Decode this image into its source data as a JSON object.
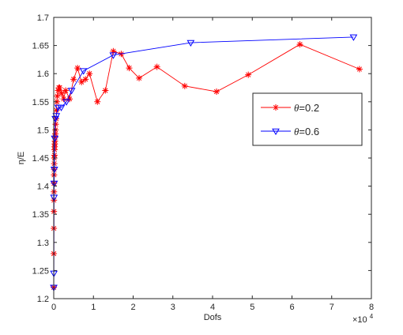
{
  "chart_data": {
    "type": "line",
    "xlabel": "Dofs",
    "ylabel": "η/E",
    "x_exponent_label": "×10",
    "x_exponent_power": "4",
    "xlim": [
      0,
      80000
    ],
    "ylim": [
      1.2,
      1.7
    ],
    "x_ticks": [
      0,
      10000,
      20000,
      30000,
      40000,
      50000,
      60000,
      70000,
      80000
    ],
    "x_tick_labels": [
      "0",
      "1",
      "2",
      "3",
      "4",
      "5",
      "6",
      "7",
      "8"
    ],
    "y_ticks": [
      1.2,
      1.25,
      1.3,
      1.35,
      1.4,
      1.45,
      1.5,
      1.55,
      1.6,
      1.65,
      1.7
    ],
    "y_tick_labels": [
      "1.2",
      "1.25",
      "1.3",
      "1.35",
      "1.4",
      "1.45",
      "1.5",
      "1.55",
      "1.6",
      "1.65",
      "1.7"
    ],
    "grid": false,
    "legend_position": "right",
    "series": [
      {
        "name": "θ=0.2",
        "name_symbol": "θ",
        "name_value": "=0.2",
        "color": "#ff0000",
        "marker": "asterisk",
        "x": [
          10,
          20,
          30,
          40,
          50,
          60,
          70,
          80,
          100,
          120,
          150,
          180,
          200,
          230,
          260,
          300,
          350,
          400,
          450,
          500,
          600,
          700,
          800,
          900,
          1100,
          1300,
          1500,
          2000,
          2500,
          3000,
          4000,
          5000,
          6000,
          7000,
          8000,
          9000,
          11000,
          13000,
          15000,
          17000,
          19000,
          21500,
          26000,
          33000,
          41000,
          49000,
          62000,
          77000
        ],
        "y": [
          1.22,
          1.28,
          1.325,
          1.355,
          1.375,
          1.39,
          1.405,
          1.42,
          1.43,
          1.44,
          1.45,
          1.455,
          1.465,
          1.47,
          1.475,
          1.48,
          1.487,
          1.493,
          1.5,
          1.51,
          1.52,
          1.535,
          1.55,
          1.56,
          1.57,
          1.575,
          1.575,
          1.565,
          1.555,
          1.57,
          1.555,
          1.59,
          1.61,
          1.585,
          1.59,
          1.6,
          1.55,
          1.57,
          1.64,
          1.635,
          1.61,
          1.592,
          1.612,
          1.578,
          1.568,
          1.598,
          1.652,
          1.608
        ]
      },
      {
        "name": "θ=0.6",
        "name_symbol": "θ",
        "name_value": "=0.6",
        "color": "#0000ff",
        "marker": "triangle-down",
        "x": [
          10,
          30,
          60,
          100,
          150,
          250,
          400,
          650,
          1100,
          1900,
          3200,
          4500,
          7500,
          15000,
          34500,
          75500
        ],
        "y": [
          1.22,
          1.245,
          1.38,
          1.405,
          1.43,
          1.485,
          1.52,
          1.525,
          1.54,
          1.54,
          1.55,
          1.57,
          1.605,
          1.633,
          1.655,
          1.665
        ]
      }
    ]
  }
}
